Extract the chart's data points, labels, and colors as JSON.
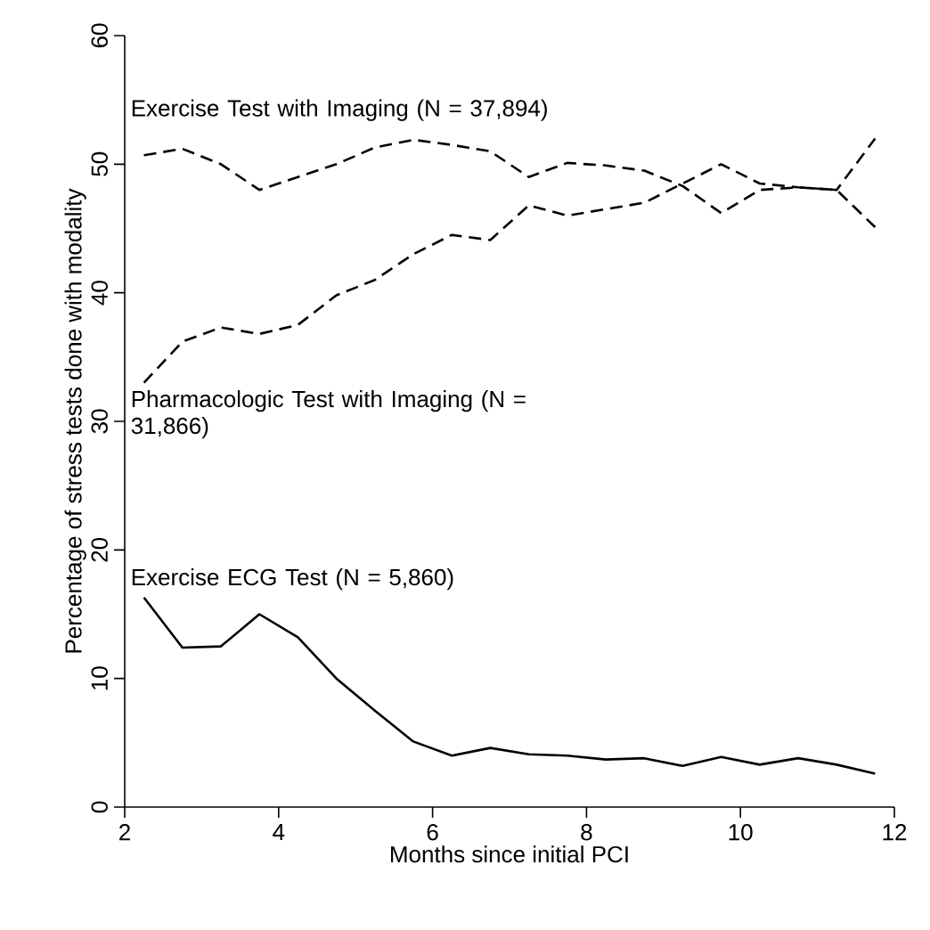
{
  "chart_data": {
    "type": "line",
    "xlabel": "Months since initial PCI",
    "ylabel": "Percentage of stress tests done with modality",
    "x": [
      2.25,
      2.75,
      3.25,
      3.75,
      4.25,
      4.75,
      5.25,
      5.75,
      6.25,
      6.75,
      7.25,
      7.75,
      8.25,
      8.75,
      9.25,
      9.75,
      10.25,
      10.75,
      11.25,
      11.75
    ],
    "xlim": [
      2,
      12
    ],
    "ylim": [
      0,
      60
    ],
    "xticks": [
      2,
      4,
      6,
      8,
      10,
      12
    ],
    "yticks": [
      0,
      10,
      20,
      30,
      40,
      50,
      60
    ],
    "series": [
      {
        "name": "Exercise Test with Imaging (N = 37,894)",
        "color": "#000000",
        "line_style": "dashed",
        "values": [
          50.7,
          51.2,
          50.0,
          48.0,
          49.0,
          50.0,
          51.3,
          51.9,
          51.5,
          51.0,
          49.0,
          50.1,
          49.9,
          49.5,
          48.3,
          46.2,
          48.0,
          48.2,
          48.0,
          45.1
        ]
      },
      {
        "name": "Pharmacologic Test with Imaging (N = 31,866)",
        "color": "#000000",
        "line_style": "dashed",
        "values": [
          33.0,
          36.2,
          37.3,
          36.8,
          37.5,
          39.8,
          41.0,
          43.0,
          44.5,
          44.1,
          46.8,
          46.0,
          46.5,
          47.0,
          48.5,
          50.0,
          48.5,
          48.2,
          48.0,
          52.0
        ]
      },
      {
        "name": "Exercise ECG Test (N = 5,860)",
        "color": "#000000",
        "line_style": "solid",
        "values": [
          16.3,
          12.4,
          12.5,
          15.0,
          13.2,
          10.0,
          7.5,
          5.1,
          4.0,
          4.6,
          4.1,
          4.0,
          3.7,
          3.8,
          3.2,
          3.9,
          3.3,
          3.8,
          3.3,
          2.6
        ]
      }
    ],
    "legend": false
  }
}
